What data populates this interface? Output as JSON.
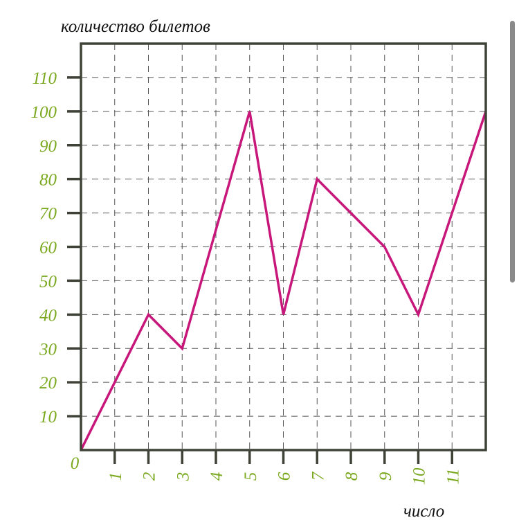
{
  "chart_data": {
    "type": "line",
    "ylabel": "количество билетов",
    "xlabel": "число",
    "origin_label": "0",
    "x_ticks": [
      "1",
      "2",
      "3",
      "4",
      "5",
      "6",
      "7",
      "8",
      "9",
      "10",
      "11"
    ],
    "y_ticks": [
      "10",
      "20",
      "30",
      "40",
      "50",
      "60",
      "70",
      "80",
      "90",
      "100",
      "110"
    ],
    "xlim": [
      0,
      12
    ],
    "ylim": [
      0,
      120
    ],
    "grid": true,
    "series": [
      {
        "x": [
          0,
          1,
          2,
          3,
          4,
          5,
          6,
          7,
          8,
          9,
          10,
          11,
          12
        ],
        "y": [
          0,
          20,
          40,
          30,
          65,
          100,
          40,
          80,
          70,
          60,
          40,
          70,
          100
        ]
      }
    ],
    "colors": {
      "line": "#c8177a",
      "ticks": "#7aa81e",
      "axis": "#3f4237",
      "grid": "#555555"
    }
  }
}
